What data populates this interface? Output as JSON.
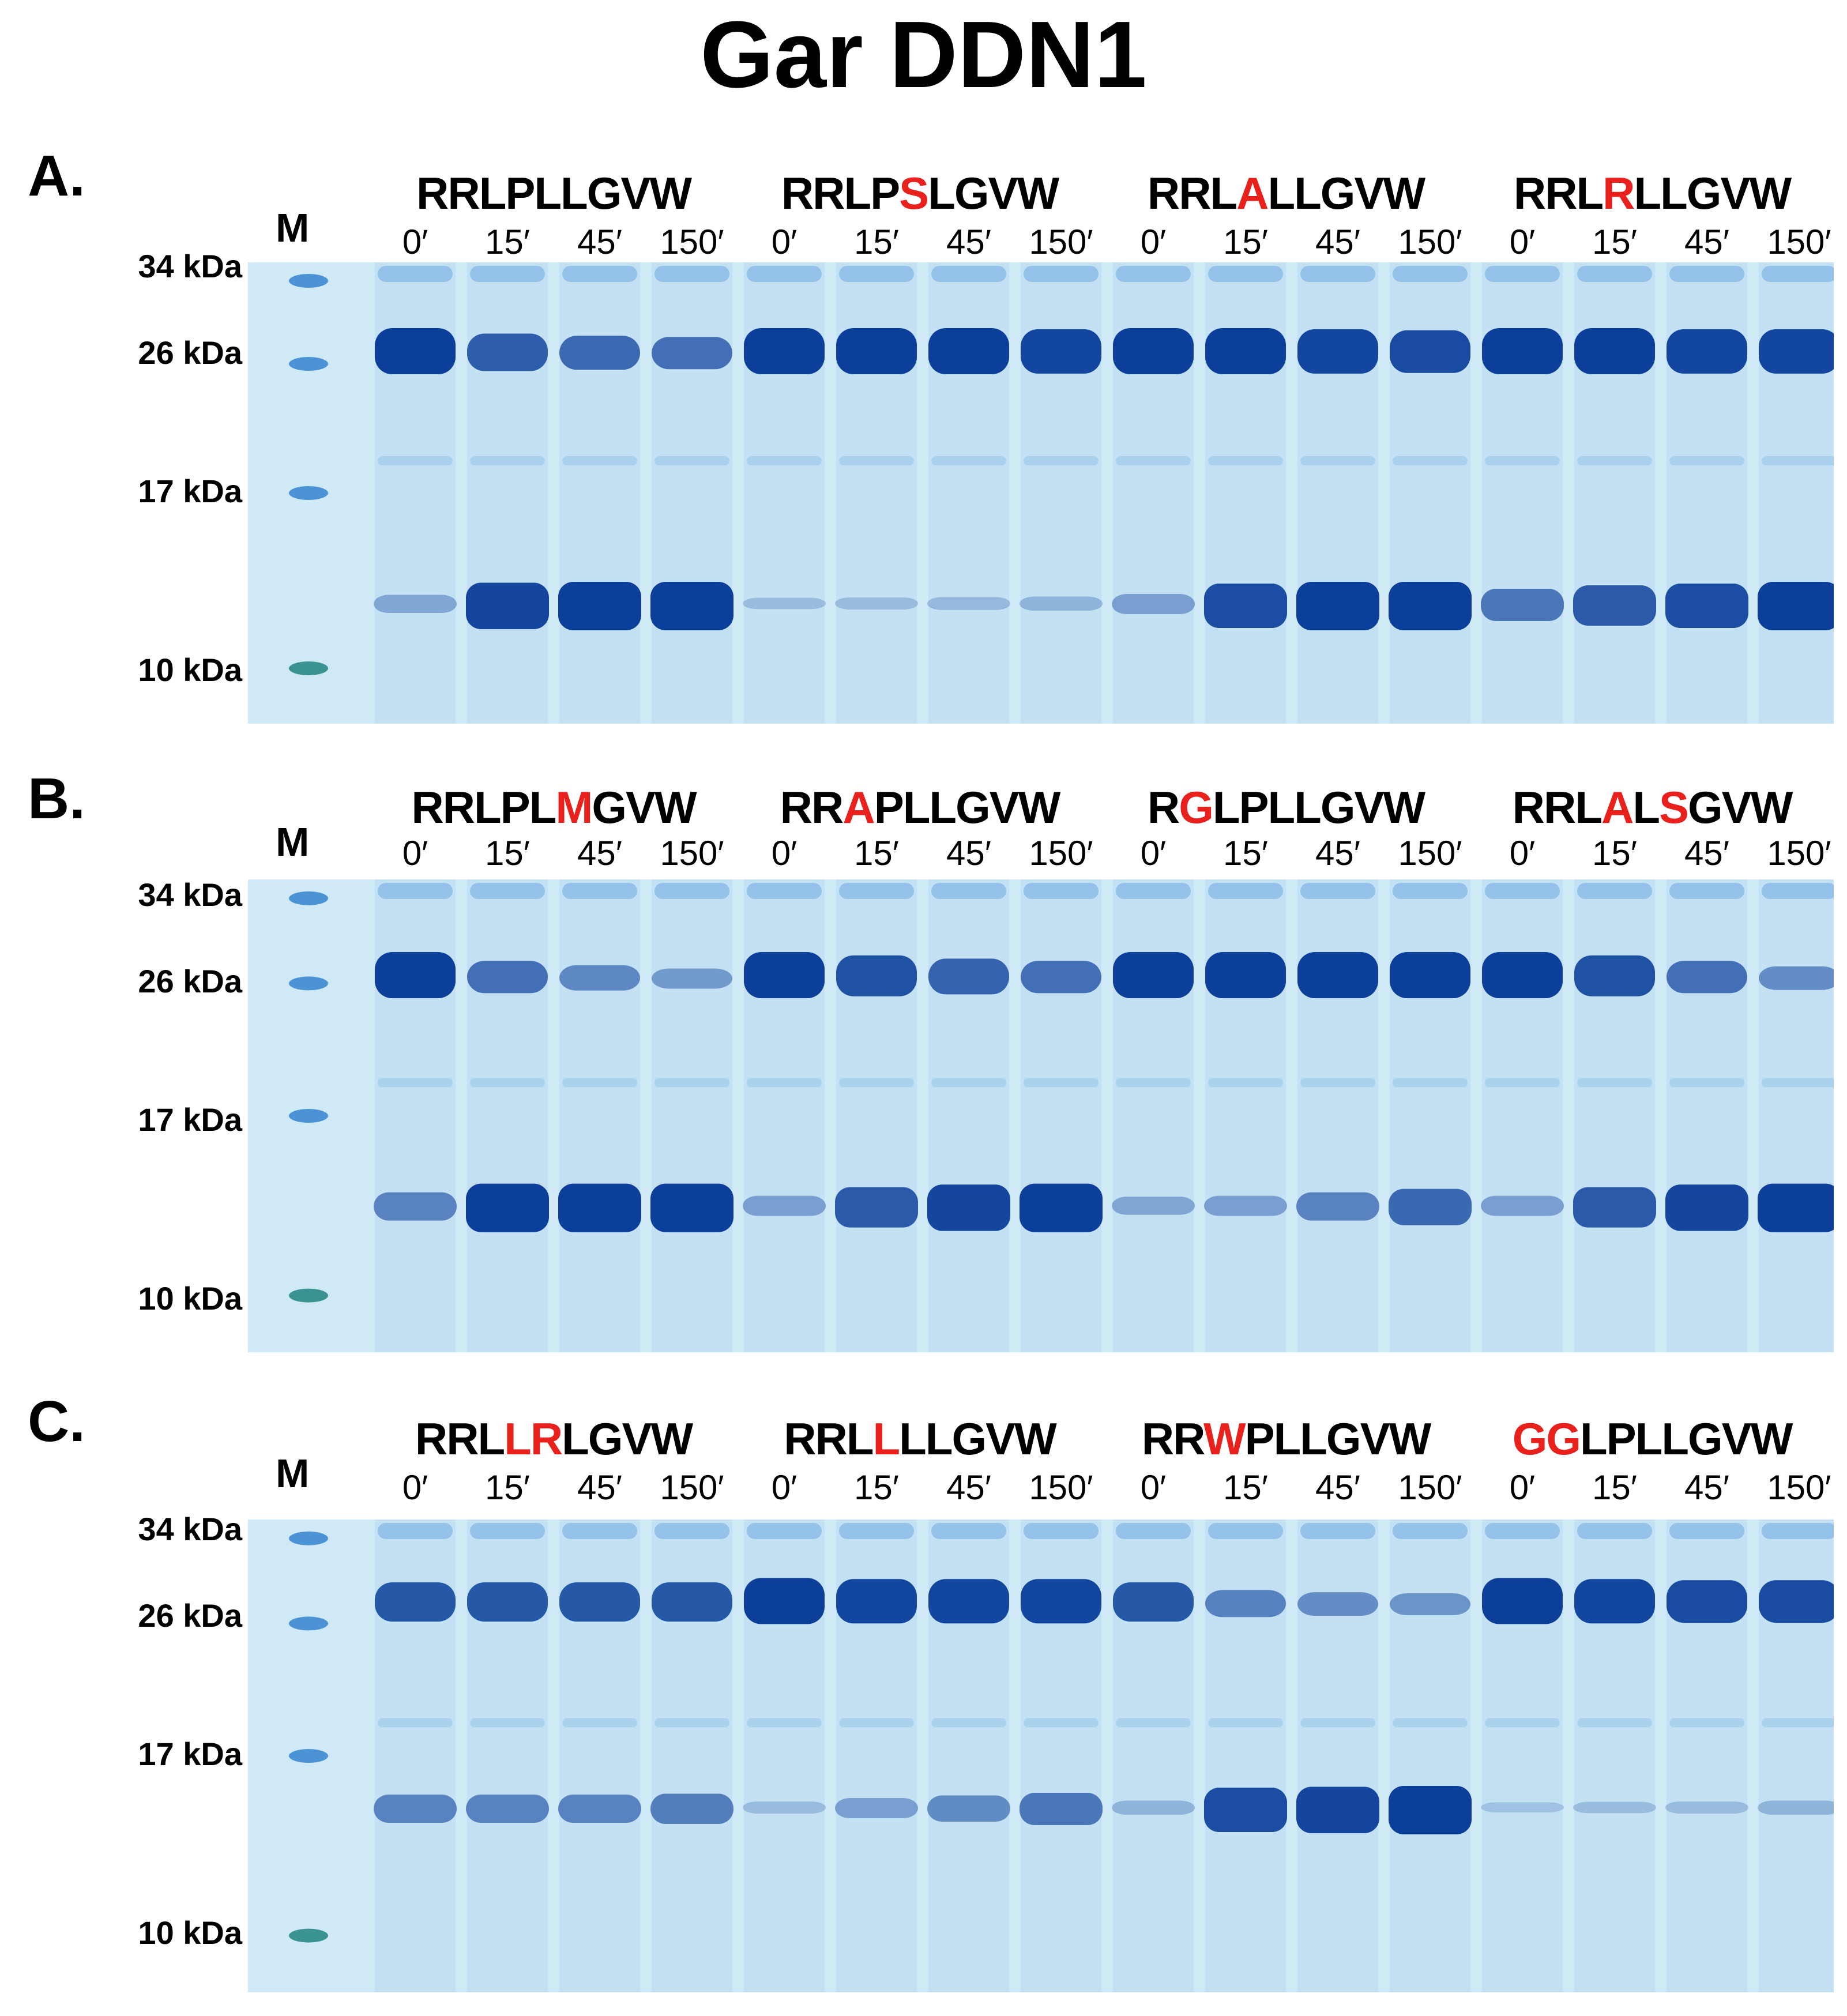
{
  "title": "Gar DDN1",
  "marker_label": "M",
  "mw_markers": [
    "34 kDa",
    "26 kDa",
    "17 kDa",
    "10 kDa"
  ],
  "timepoints": [
    "0′",
    "15′",
    "45′",
    "150′"
  ],
  "colors": {
    "gel_background": "#cfe9f6",
    "band_dark": "#0b3f9a",
    "band_light": "#3d8ad3",
    "marker_10kda": "#2a8a86",
    "mutation": "#e8211d"
  },
  "panels": [
    {
      "label": "A.",
      "sequences": [
        {
          "text": "RRLPLLGVW",
          "parts": [
            {
              "t": "RRLPLLGVW",
              "mut": false
            }
          ],
          "bands_26": [
            1.0,
            0.75,
            0.65,
            0.6
          ],
          "bands_12": [
            0.25,
            0.95,
            1.0,
            1.0
          ]
        },
        {
          "text": "RRLPSLGVW",
          "parts": [
            {
              "t": "RRLP",
              "mut": false
            },
            {
              "t": "S",
              "mut": true
            },
            {
              "t": "LGVW",
              "mut": false
            }
          ],
          "bands_26": [
            1.0,
            1.0,
            1.0,
            0.95
          ],
          "bands_12": [
            0.08,
            0.1,
            0.12,
            0.15
          ]
        },
        {
          "text": "RRLALLGVW",
          "parts": [
            {
              "t": "RRL",
              "mut": false
            },
            {
              "t": "A",
              "mut": true
            },
            {
              "t": "LLGVW",
              "mut": false
            }
          ],
          "bands_26": [
            1.0,
            1.0,
            0.95,
            0.9
          ],
          "bands_12": [
            0.3,
            0.9,
            1.0,
            1.0
          ]
        },
        {
          "text": "RRLRLLGVW",
          "parts": [
            {
              "t": "RRL",
              "mut": false
            },
            {
              "t": "R",
              "mut": true
            },
            {
              "t": "LLGVW",
              "mut": false
            }
          ],
          "bands_26": [
            1.0,
            1.0,
            0.95,
            0.95
          ],
          "bands_12": [
            0.6,
            0.8,
            0.9,
            1.0
          ]
        }
      ]
    },
    {
      "label": "B.",
      "sequences": [
        {
          "text": "RRLPLMGVW",
          "parts": [
            {
              "t": "RRLPL",
              "mut": false
            },
            {
              "t": "M",
              "mut": true
            },
            {
              "t": "GVW",
              "mut": false
            }
          ],
          "bands_26": [
            1.0,
            0.6,
            0.4,
            0.25
          ],
          "bands_12": [
            0.5,
            1.0,
            1.0,
            1.0
          ]
        },
        {
          "text": "RRAPLLGVW",
          "parts": [
            {
              "t": "RR",
              "mut": false
            },
            {
              "t": "A",
              "mut": true
            },
            {
              "t": "PLLGVW",
              "mut": false
            }
          ],
          "bands_26": [
            1.0,
            0.85,
            0.7,
            0.6
          ],
          "bands_12": [
            0.3,
            0.8,
            0.95,
            1.0
          ]
        },
        {
          "text": "RGLPLLGVW",
          "parts": [
            {
              "t": "R",
              "mut": false
            },
            {
              "t": "G",
              "mut": true
            },
            {
              "t": "LPLLGVW",
              "mut": false
            }
          ],
          "bands_26": [
            1.0,
            1.0,
            1.0,
            1.0
          ],
          "bands_12": [
            0.25,
            0.3,
            0.5,
            0.7
          ]
        },
        {
          "text": "RRLALSGVW",
          "parts": [
            {
              "t": "RRL",
              "mut": false
            },
            {
              "t": "A",
              "mut": true
            },
            {
              "t": "L",
              "mut": false
            },
            {
              "t": "S",
              "mut": true
            },
            {
              "t": "GVW",
              "mut": false
            }
          ],
          "bands_26": [
            1.0,
            0.85,
            0.6,
            0.35
          ],
          "bands_12": [
            0.3,
            0.8,
            0.95,
            1.0
          ]
        }
      ]
    },
    {
      "label": "C.",
      "sequences": [
        {
          "text": "RRLLRLGVW",
          "parts": [
            {
              "t": "RRL",
              "mut": false
            },
            {
              "t": "LR",
              "mut": true
            },
            {
              "t": "LGVW",
              "mut": false
            }
          ],
          "bands_26": [
            0.8,
            0.8,
            0.8,
            0.8
          ],
          "bands_12": [
            0.5,
            0.5,
            0.5,
            0.55
          ]
        },
        {
          "text": "RRLLLLGVW",
          "parts": [
            {
              "t": "RRL",
              "mut": false
            },
            {
              "t": "L",
              "mut": true
            },
            {
              "t": "LLGVW",
              "mut": false
            }
          ],
          "bands_26": [
            1.0,
            0.95,
            0.95,
            0.95
          ],
          "bands_12": [
            0.1,
            0.3,
            0.45,
            0.6
          ]
        },
        {
          "text": "RRWPLLGVW",
          "parts": [
            {
              "t": "RR",
              "mut": false
            },
            {
              "t": "W",
              "mut": true
            },
            {
              "t": "PLLGVW",
              "mut": false
            }
          ],
          "bands_26": [
            0.8,
            0.45,
            0.35,
            0.3
          ],
          "bands_12": [
            0.15,
            0.9,
            0.95,
            1.0
          ]
        },
        {
          "text": "GGLPLLGVW",
          "parts": [
            {
              "t": "GG",
              "mut": true
            },
            {
              "t": "LPLLGVW",
              "mut": false
            }
          ],
          "bands_26": [
            1.0,
            0.95,
            0.9,
            0.9
          ],
          "bands_12": [
            0.05,
            0.08,
            0.1,
            0.15
          ]
        }
      ]
    }
  ]
}
